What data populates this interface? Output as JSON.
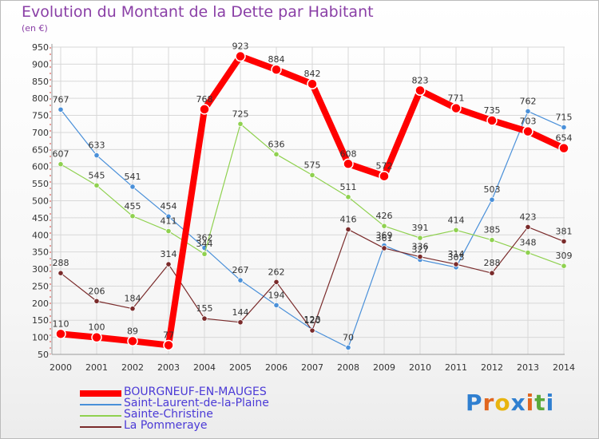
{
  "title": "Evolution du Montant de la Dette par Habitant",
  "subtitle": "(en €)",
  "logo": "Proxiti",
  "chart_data": {
    "type": "line",
    "title": "Evolution du Montant de la Dette par Habitant",
    "ylabel": "(en €)",
    "ylim": [
      50,
      950
    ],
    "yticks": [
      50,
      100,
      150,
      200,
      250,
      300,
      350,
      400,
      450,
      500,
      550,
      600,
      650,
      700,
      750,
      800,
      850,
      900,
      950
    ],
    "x": [
      "2000",
      "2001",
      "2002",
      "2003",
      "2004",
      "2005",
      "2006",
      "2007",
      "2008",
      "2009",
      "2010",
      "2011",
      "2012",
      "2013",
      "2014"
    ],
    "grid": true,
    "legend_position": "bottom-left",
    "series": [
      {
        "name": "BOURGNEUF-EN-MAUGES",
        "color": "#ff0000",
        "values": [
          110,
          100,
          89,
          77,
          768,
          923,
          884,
          842,
          608,
          572,
          823,
          771,
          735,
          703,
          654
        ]
      },
      {
        "name": "Saint-Laurent-de-la-Plaine",
        "color": "#4a90d9",
        "values": [
          767,
          633,
          541,
          454,
          362,
          267,
          194,
          123,
          70,
          369,
          327,
          305,
          503,
          762,
          715
        ]
      },
      {
        "name": "Sainte-Christine",
        "color": "#8fd14f",
        "values": [
          607,
          545,
          455,
          411,
          344,
          725,
          636,
          575,
          511,
          426,
          391,
          414,
          385,
          348,
          309
        ]
      },
      {
        "name": "La Pommeraye",
        "color": "#7a2b2b",
        "values": [
          288,
          206,
          184,
          314,
          155,
          144,
          262,
          120,
          416,
          361,
          336,
          314,
          288,
          423,
          381
        ]
      }
    ],
    "data_labels": [
      [
        "110",
        "100",
        "89",
        "77",
        "768",
        "923",
        "884",
        "842",
        "608",
        "572",
        "823",
        "771",
        "735",
        "703",
        "654"
      ],
      [
        "767",
        "633",
        "541",
        "454",
        "362",
        "267",
        "194",
        "123",
        "70",
        "369",
        "327",
        "305",
        "503",
        "762",
        "715"
      ],
      [
        "607",
        "545",
        "455",
        "411",
        "344",
        "725",
        "636",
        "575",
        "511",
        "426",
        "391",
        "414",
        "385",
        "348",
        "309"
      ],
      [
        "288",
        "206",
        "184",
        "314",
        "155",
        "144",
        "262",
        "120",
        "416",
        "361",
        "336",
        "314",
        "288",
        "423",
        "381"
      ]
    ]
  }
}
